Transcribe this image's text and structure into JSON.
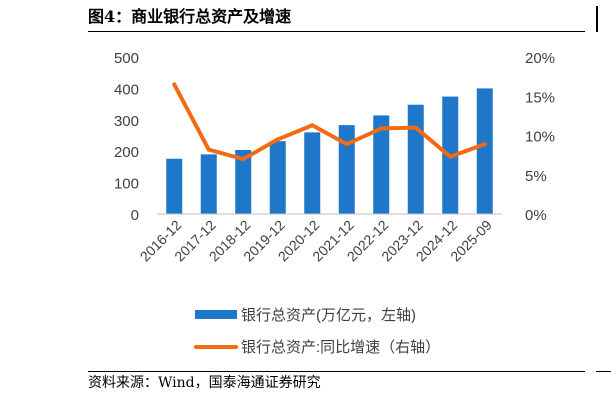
{
  "header": {
    "title": "图4：商业银行总资产及增速"
  },
  "footer": {
    "source": "资料来源：Wind，国泰海通证券研究"
  },
  "colors": {
    "bar": "#1f77c9",
    "line": "#f26b12",
    "axis_text": "#404040"
  },
  "chart_data": {
    "type": "bar+line",
    "title": "",
    "categories": [
      "2016-12",
      "2017-12",
      "2018-12",
      "2019-12",
      "2020-12",
      "2021-12",
      "2022-12",
      "2023-12",
      "2024-12",
      "2025-09"
    ],
    "series": [
      {
        "name": "银行总资产(万亿元，左轴)",
        "type": "bar",
        "axis": "left",
        "values": [
          176,
          190,
          204,
          232,
          260,
          283,
          314,
          348,
          374,
          400
        ]
      },
      {
        "name": "银行总资产:同比增速（右轴）",
        "type": "line",
        "axis": "right",
        "values": [
          16.5,
          8.2,
          7.0,
          9.5,
          11.3,
          8.9,
          10.9,
          11.0,
          7.3,
          8.9
        ]
      }
    ],
    "left_axis": {
      "ylim": [
        0,
        500
      ],
      "ticks": [
        "0",
        "100",
        "200",
        "300",
        "400",
        "500"
      ]
    },
    "right_axis": {
      "ylim": [
        0,
        20
      ],
      "ticks": [
        "0%",
        "5%",
        "10%",
        "15%",
        "20%"
      ]
    },
    "grid": false,
    "legend_position": "bottom"
  }
}
